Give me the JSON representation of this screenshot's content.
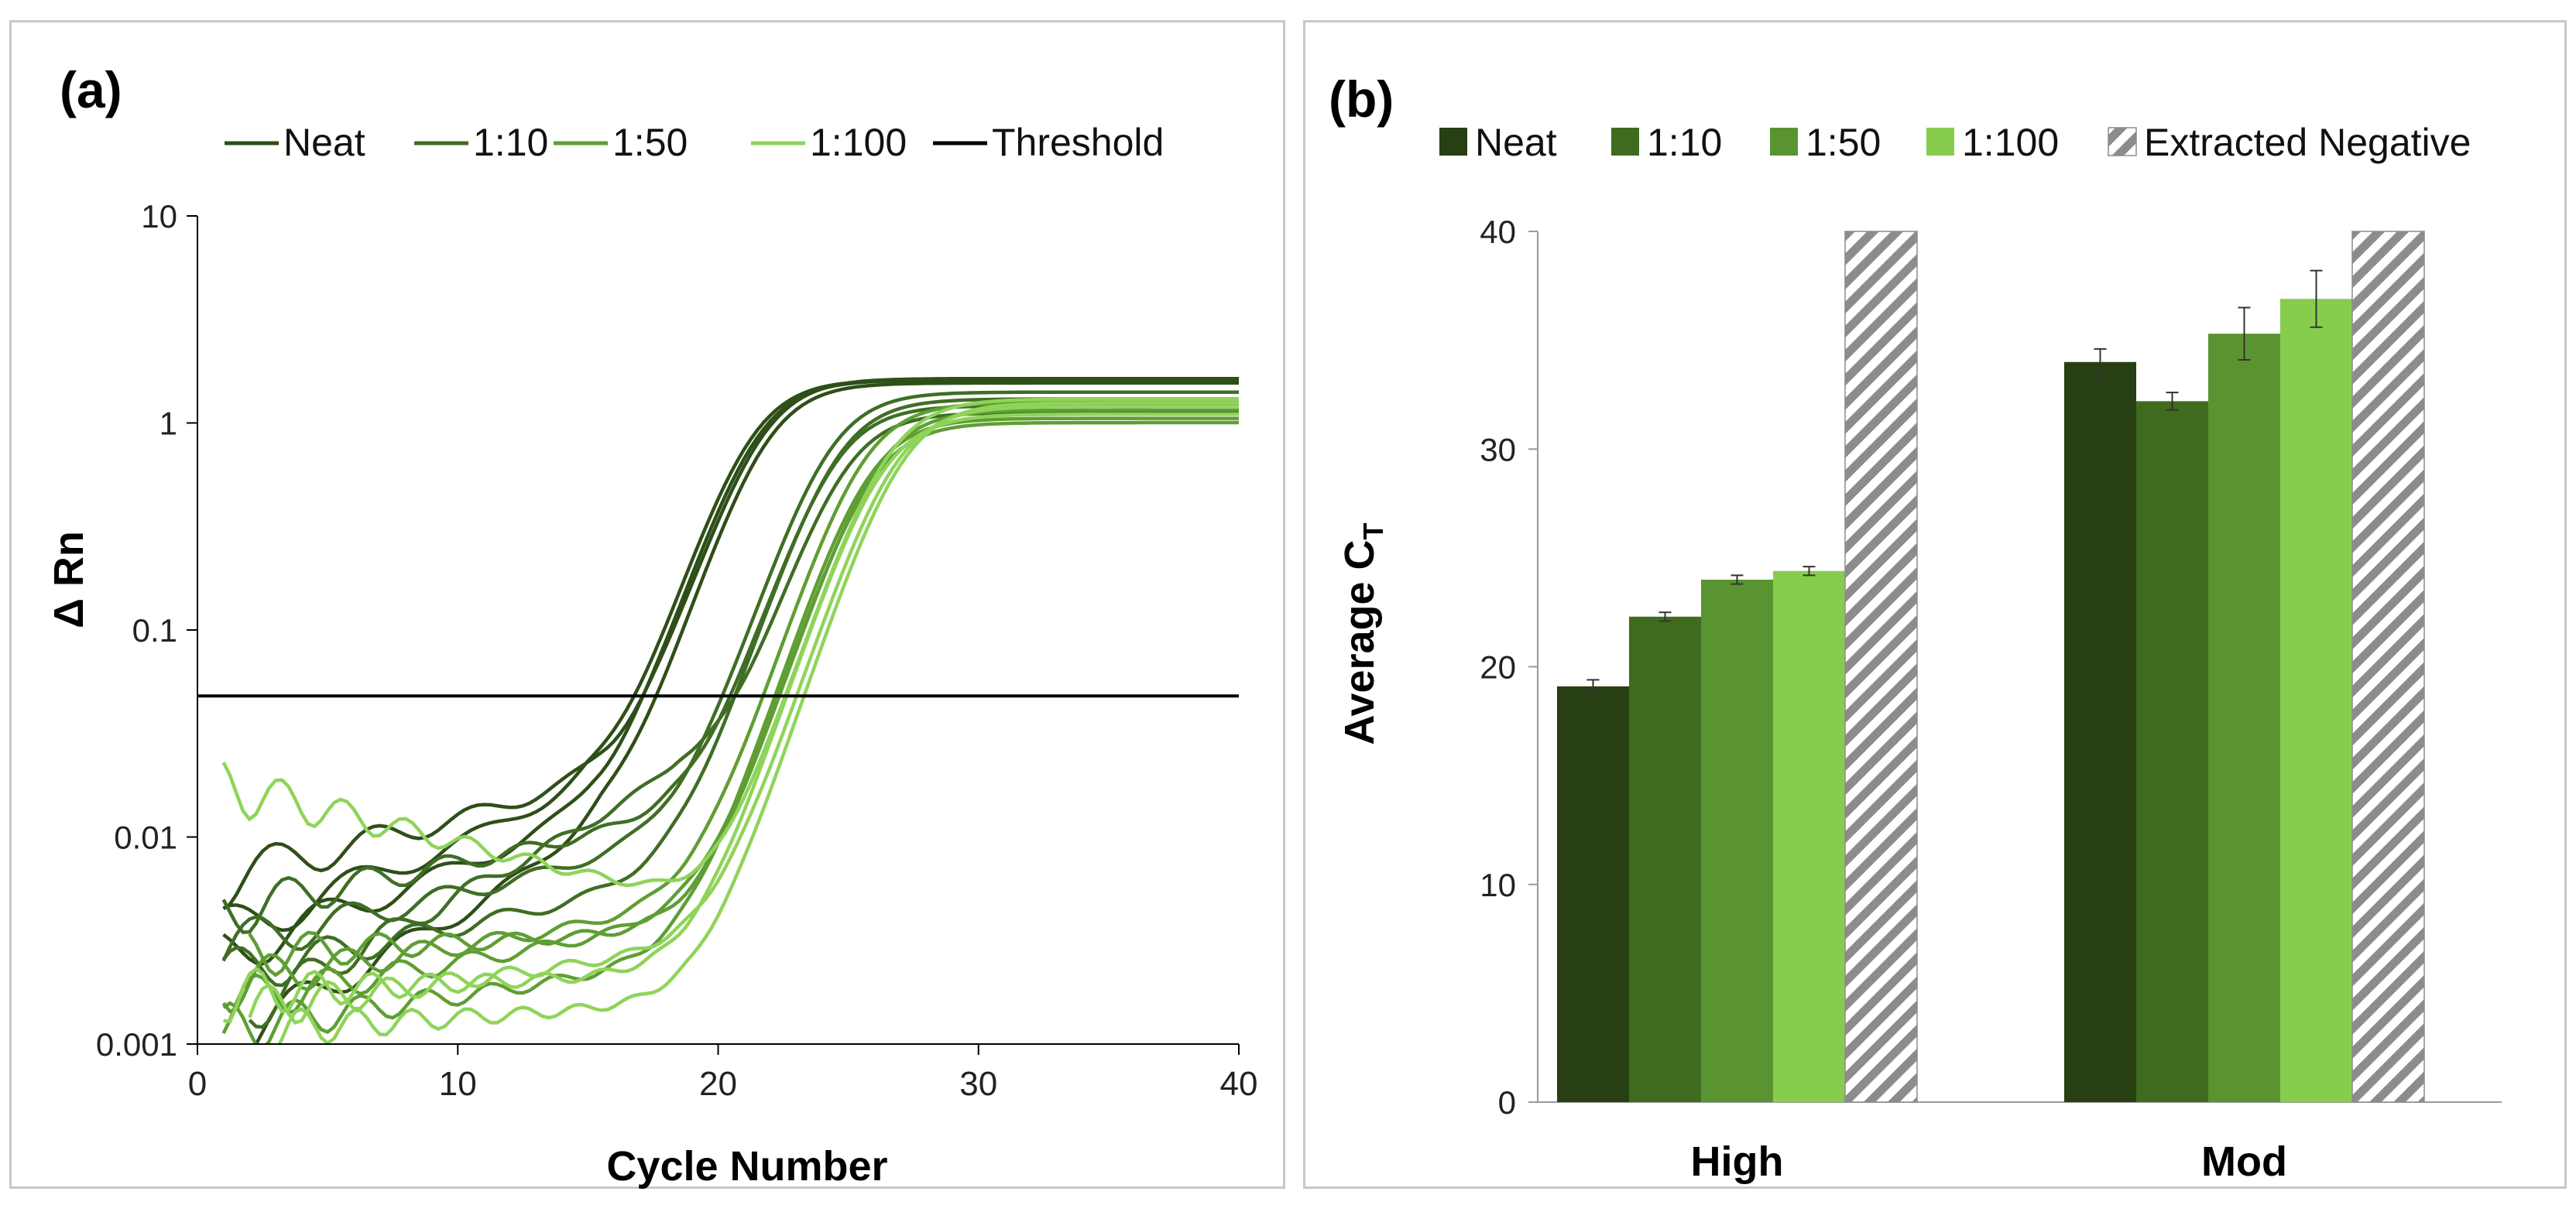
{
  "chart_data": [
    {
      "type": "line",
      "panel_label": "(a)",
      "xlabel": "Cycle Number",
      "ylabel": "Δ Rn",
      "xlim": [
        0,
        40
      ],
      "ylim": [
        0.001,
        10
      ],
      "yscale": "log",
      "x_ticks": [
        0,
        10,
        20,
        30,
        40
      ],
      "x_tick_labels": [
        "0",
        "10",
        "20",
        "30",
        "40"
      ],
      "y_ticks": [
        0.001,
        0.01,
        0.1,
        1,
        10
      ],
      "y_tick_labels": [
        "0.001",
        "0.01",
        "0.1",
        "1",
        "10"
      ],
      "threshold": 0.048,
      "legend": [
        {
          "name": "Neat",
          "color": "#2e4f18"
        },
        {
          "name": "1:10",
          "color": "#3f6e24"
        },
        {
          "name": "1:50",
          "color": "#5f9e34"
        },
        {
          "name": "1:100",
          "color": "#8fd45a"
        },
        {
          "name": "Threshold",
          "color": "#000000"
        }
      ],
      "curves": [
        {
          "series": "Neat",
          "color": "#2e4f18",
          "base": 0.0035,
          "bfin": 0.016,
          "midpoint": 19.0,
          "k": 0.55,
          "plateau": 1.6,
          "x0": 1
        },
        {
          "series": "Neat",
          "color": "#2e4f18",
          "base": 0.0028,
          "bfin": 0.012,
          "midpoint": 19.2,
          "k": 0.55,
          "plateau": 1.6,
          "x0": 1
        },
        {
          "series": "Neat",
          "color": "#2e4f18",
          "base": 0.0012,
          "bfin": 0.01,
          "midpoint": 19.6,
          "k": 0.55,
          "plateau": 1.55,
          "x0": 2
        },
        {
          "series": "Neat",
          "color": "#2e4f18",
          "base": 0.0065,
          "bfin": 0.018,
          "midpoint": 19.4,
          "k": 0.55,
          "plateau": 1.62,
          "x0": 1
        },
        {
          "series": "1:10",
          "color": "#3f6e24",
          "base": 0.003,
          "bfin": 0.009,
          "midpoint": 22.0,
          "k": 0.55,
          "plateau": 1.4,
          "x0": 1
        },
        {
          "series": "1:10",
          "color": "#3f6e24",
          "base": 0.0022,
          "bfin": 0.006,
          "midpoint": 22.3,
          "k": 0.55,
          "plateau": 1.3,
          "x0": 1
        },
        {
          "series": "1:10",
          "color": "#3f6e24",
          "base": 0.0015,
          "bfin": 0.02,
          "midpoint": 22.6,
          "k": 0.55,
          "plateau": 1.1,
          "x0": 2
        },
        {
          "series": "1:10",
          "color": "#3f6e24",
          "base": 0.0045,
          "bfin": 0.012,
          "midpoint": 22.2,
          "k": 0.55,
          "plateau": 1.2,
          "x0": 1
        },
        {
          "series": "1:50",
          "color": "#5f9e34",
          "base": 0.002,
          "bfin": 0.0045,
          "midpoint": 23.3,
          "k": 0.55,
          "plateau": 1.25,
          "x0": 1
        },
        {
          "series": "1:50",
          "color": "#5f9e34",
          "base": 0.0016,
          "bfin": 0.004,
          "midpoint": 23.6,
          "k": 0.55,
          "plateau": 1.0,
          "x0": 1
        },
        {
          "series": "1:50",
          "color": "#5f9e34",
          "base": 0.0028,
          "bfin": 0.0035,
          "midpoint": 23.8,
          "k": 0.55,
          "plateau": 1.15,
          "x0": 2
        },
        {
          "series": "1:50",
          "color": "#5f9e34",
          "base": 0.0012,
          "bfin": 0.0025,
          "midpoint": 23.5,
          "k": 0.55,
          "plateau": 1.05,
          "x0": 1
        },
        {
          "series": "1:100",
          "color": "#8fd45a",
          "base": 0.018,
          "bfin": 0.0045,
          "midpoint": 24.2,
          "k": 0.55,
          "plateau": 1.3,
          "x0": 1
        },
        {
          "series": "1:100",
          "color": "#8fd45a",
          "base": 0.0015,
          "bfin": 0.003,
          "midpoint": 24.5,
          "k": 0.55,
          "plateau": 1.2,
          "x0": 2
        },
        {
          "series": "1:100",
          "color": "#8fd45a",
          "base": 0.0018,
          "bfin": 0.0022,
          "midpoint": 24.0,
          "k": 0.55,
          "plateau": 1.1,
          "x0": 1
        },
        {
          "series": "1:100",
          "color": "#8fd45a",
          "base": 0.0012,
          "bfin": 0.0016,
          "midpoint": 24.8,
          "k": 0.55,
          "plateau": 1.25,
          "x0": 3
        }
      ]
    },
    {
      "type": "bar",
      "panel_label": "(b)",
      "categories": [
        "High",
        "Mod"
      ],
      "ylabel": "Average C",
      "ylabel_sub": "T",
      "ylim": [
        0,
        40
      ],
      "y_ticks": [
        0,
        10,
        20,
        30,
        40
      ],
      "y_tick_labels": [
        "0",
        "10",
        "20",
        "30",
        "40"
      ],
      "series": [
        {
          "name": "Neat",
          "color": "#273f12",
          "values": [
            19.1,
            34.0
          ],
          "errors": [
            0.3,
            0.6
          ]
        },
        {
          "name": "1:10",
          "color": "#3f6b1f",
          "values": [
            22.3,
            32.2
          ],
          "errors": [
            0.2,
            0.4
          ]
        },
        {
          "name": "1:50",
          "color": "#5a9430",
          "values": [
            24.0,
            35.3
          ],
          "errors": [
            0.2,
            1.2
          ]
        },
        {
          "name": "1:100",
          "color": "#88cc4e",
          "values": [
            24.4,
            36.9
          ],
          "errors": [
            0.2,
            1.3
          ]
        },
        {
          "name": "Extracted Negative",
          "color": "hatched",
          "values": [
            40,
            40
          ],
          "errors": [
            0,
            0
          ]
        }
      ]
    }
  ]
}
